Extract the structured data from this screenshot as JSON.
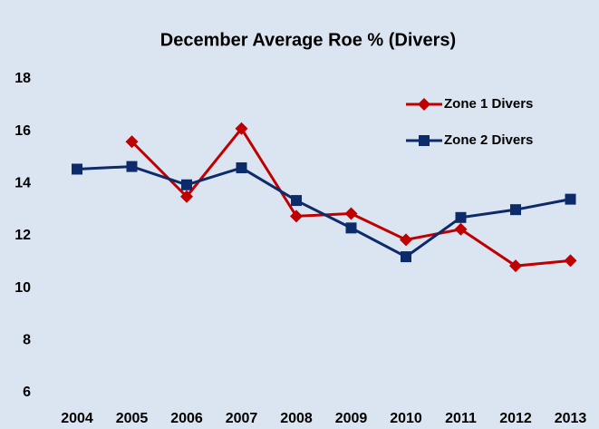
{
  "chart_data": {
    "type": "line",
    "title": "December Average Roe % (Divers)",
    "categories": [
      "2004",
      "2005",
      "2006",
      "2007",
      "2008",
      "2009",
      "2010",
      "2011",
      "2012",
      "2013"
    ],
    "series": [
      {
        "name": "Zone 1 Divers",
        "color": "#c00000",
        "marker": "diamond",
        "values": [
          null,
          15.6,
          13.5,
          16.1,
          12.75,
          12.85,
          11.85,
          12.25,
          10.85,
          11.05
        ]
      },
      {
        "name": "Zone 2 Divers",
        "color": "#0d2a6b",
        "marker": "square",
        "values": [
          14.55,
          14.65,
          13.95,
          14.6,
          13.35,
          12.3,
          11.2,
          12.7,
          13.0,
          13.4
        ]
      }
    ],
    "ylim": [
      6,
      18
    ],
    "yticks": [
      6,
      8,
      10,
      12,
      14,
      16,
      18
    ],
    "grid": false,
    "legend": "upper right"
  }
}
